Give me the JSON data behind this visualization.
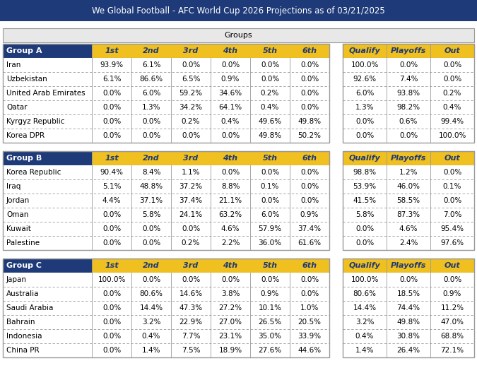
{
  "title": "We Global Football - AFC World Cup 2026 Projections as of 03/21/2025",
  "title_bg": "#1e3a78",
  "title_fg": "#ffffff",
  "groups_label": "Groups",
  "col_headers_groups": [
    "1st",
    "2nd",
    "3rd",
    "4th",
    "5th",
    "6th"
  ],
  "col_headers_results": [
    "Qualify",
    "Playoffs",
    "Out"
  ],
  "header_bg": "#f0c020",
  "header_fg": "#1e3a78",
  "group_hdr_bg": "#1e3a78",
  "group_hdr_fg": "#ffffff",
  "grid_color": "#999999",
  "groups_label_bg": "#e8e8e8",
  "groups": [
    {
      "name": "Group A",
      "teams": [
        "Iran",
        "Uzbekistan",
        "United Arab Emirates",
        "Qatar",
        "Kyrgyz Republic",
        "Korea DPR"
      ],
      "group_data": [
        [
          93.9,
          6.1,
          0.0,
          0.0,
          0.0,
          0.0
        ],
        [
          6.1,
          86.6,
          6.5,
          0.9,
          0.0,
          0.0
        ],
        [
          0.0,
          6.0,
          59.2,
          34.6,
          0.2,
          0.0
        ],
        [
          0.0,
          1.3,
          34.2,
          64.1,
          0.4,
          0.0
        ],
        [
          0.0,
          0.0,
          0.2,
          0.4,
          49.6,
          49.8
        ],
        [
          0.0,
          0.0,
          0.0,
          0.0,
          49.8,
          50.2
        ]
      ],
      "result_data": [
        [
          100.0,
          0.0,
          0.0
        ],
        [
          92.6,
          7.4,
          0.0
        ],
        [
          6.0,
          93.8,
          0.2
        ],
        [
          1.3,
          98.2,
          0.4
        ],
        [
          0.0,
          0.6,
          99.4
        ],
        [
          0.0,
          0.0,
          100.0
        ]
      ]
    },
    {
      "name": "Group B",
      "teams": [
        "Korea Republic",
        "Iraq",
        "Jordan",
        "Oman",
        "Kuwait",
        "Palestine"
      ],
      "group_data": [
        [
          90.4,
          8.4,
          1.1,
          0.0,
          0.0,
          0.0
        ],
        [
          5.1,
          48.8,
          37.2,
          8.8,
          0.1,
          0.0
        ],
        [
          4.4,
          37.1,
          37.4,
          21.1,
          0.0,
          0.0
        ],
        [
          0.0,
          5.8,
          24.1,
          63.2,
          6.0,
          0.9
        ],
        [
          0.0,
          0.0,
          0.0,
          4.6,
          57.9,
          37.4
        ],
        [
          0.0,
          0.0,
          0.2,
          2.2,
          36.0,
          61.6
        ]
      ],
      "result_data": [
        [
          98.8,
          1.2,
          0.0
        ],
        [
          53.9,
          46.0,
          0.1
        ],
        [
          41.5,
          58.5,
          0.0
        ],
        [
          5.8,
          87.3,
          7.0
        ],
        [
          0.0,
          4.6,
          95.4
        ],
        [
          0.0,
          2.4,
          97.6
        ]
      ]
    },
    {
      "name": "Group C",
      "teams": [
        "Japan",
        "Australia",
        "Saudi Arabia",
        "Bahrain",
        "Indonesia",
        "China PR"
      ],
      "group_data": [
        [
          100.0,
          0.0,
          0.0,
          0.0,
          0.0,
          0.0
        ],
        [
          0.0,
          80.6,
          14.6,
          3.8,
          0.9,
          0.0
        ],
        [
          0.0,
          14.4,
          47.3,
          27.2,
          10.1,
          1.0
        ],
        [
          0.0,
          3.2,
          22.9,
          27.0,
          26.5,
          20.5
        ],
        [
          0.0,
          0.4,
          7.7,
          23.1,
          35.0,
          33.9
        ],
        [
          0.0,
          1.4,
          7.5,
          18.9,
          27.6,
          44.6
        ]
      ],
      "result_data": [
        [
          100.0,
          0.0,
          0.0
        ],
        [
          80.6,
          18.5,
          0.9
        ],
        [
          14.4,
          74.4,
          11.2
        ],
        [
          3.2,
          49.8,
          47.0
        ],
        [
          0.4,
          30.8,
          68.8
        ],
        [
          1.4,
          26.4,
          72.1
        ]
      ]
    }
  ]
}
